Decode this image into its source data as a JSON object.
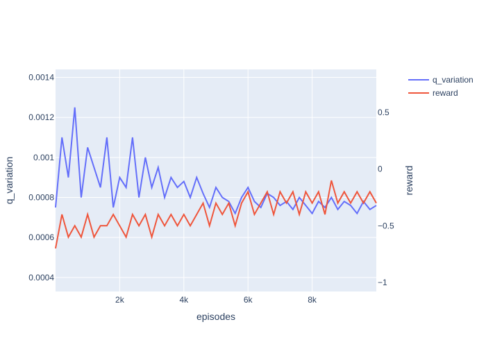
{
  "chart_data": {
    "type": "line",
    "xlabel": "episodes",
    "ylabel_left": "q_variation",
    "ylabel_right": "reward",
    "xlim": [
      0,
      10000
    ],
    "ylim_left": [
      0.00033,
      0.00144
    ],
    "ylim_right": [
      -1.08,
      0.88
    ],
    "x_ticks": [
      2000,
      4000,
      6000,
      8000
    ],
    "x_tick_labels": [
      "2k",
      "4k",
      "6k",
      "8k"
    ],
    "y_left_ticks": [
      0.0004,
      0.0006,
      0.0008,
      0.001,
      0.0012,
      0.0014
    ],
    "y_left_tick_labels": [
      "0.0004",
      "0.0006",
      "0.0008",
      "0.001",
      "0.0012",
      "0.0014"
    ],
    "y_right_ticks": [
      -1,
      -0.5,
      0,
      0.5
    ],
    "y_right_tick_labels": [
      "−1",
      "−0.5",
      "0",
      "0.5"
    ],
    "grid": true,
    "legend_position": "top-right",
    "series": [
      {
        "name": "q_variation",
        "axis": "left",
        "color": "#636efa",
        "x": [
          0,
          200,
          400,
          600,
          800,
          1000,
          1200,
          1400,
          1600,
          1800,
          2000,
          2200,
          2400,
          2600,
          2800,
          3000,
          3200,
          3400,
          3600,
          3800,
          4000,
          4200,
          4400,
          4600,
          4800,
          5000,
          5200,
          5400,
          5600,
          5800,
          6000,
          6200,
          6400,
          6600,
          6800,
          7000,
          7200,
          7400,
          7600,
          7800,
          8000,
          8200,
          8400,
          8600,
          8800,
          9000,
          9200,
          9400,
          9600,
          9800,
          10000
        ],
        "values": [
          0.00075,
          0.0011,
          0.0009,
          0.00125,
          0.0008,
          0.00105,
          0.00095,
          0.00085,
          0.0011,
          0.00075,
          0.0009,
          0.00085,
          0.0011,
          0.0008,
          0.001,
          0.00085,
          0.00095,
          0.0008,
          0.0009,
          0.00085,
          0.00088,
          0.0008,
          0.0009,
          0.00082,
          0.00075,
          0.00085,
          0.0008,
          0.00078,
          0.00072,
          0.0008,
          0.00085,
          0.00078,
          0.00075,
          0.00082,
          0.0008,
          0.00076,
          0.00078,
          0.00074,
          0.0008,
          0.00076,
          0.00072,
          0.00078,
          0.00075,
          0.0008,
          0.00074,
          0.00078,
          0.00076,
          0.00072,
          0.00078,
          0.00074,
          0.00076
        ]
      },
      {
        "name": "reward",
        "axis": "right",
        "color": "#ef553b",
        "x": [
          0,
          200,
          400,
          600,
          800,
          1000,
          1200,
          1400,
          1600,
          1800,
          2000,
          2200,
          2400,
          2600,
          2800,
          3000,
          3200,
          3400,
          3600,
          3800,
          4000,
          4200,
          4400,
          4600,
          4800,
          5000,
          5200,
          5400,
          5600,
          5800,
          6000,
          6200,
          6400,
          6600,
          6800,
          7000,
          7200,
          7400,
          7600,
          7800,
          8000,
          8200,
          8400,
          8600,
          8800,
          9000,
          9200,
          9400,
          9600,
          9800,
          10000
        ],
        "values": [
          -0.7,
          -0.4,
          -0.6,
          -0.5,
          -0.6,
          -0.4,
          -0.6,
          -0.5,
          -0.5,
          -0.4,
          -0.5,
          -0.6,
          -0.4,
          -0.5,
          -0.4,
          -0.6,
          -0.4,
          -0.5,
          -0.4,
          -0.5,
          -0.4,
          -0.5,
          -0.4,
          -0.3,
          -0.5,
          -0.3,
          -0.4,
          -0.3,
          -0.5,
          -0.3,
          -0.2,
          -0.4,
          -0.3,
          -0.2,
          -0.4,
          -0.2,
          -0.3,
          -0.2,
          -0.4,
          -0.2,
          -0.3,
          -0.2,
          -0.4,
          -0.1,
          -0.3,
          -0.2,
          -0.3,
          -0.2,
          -0.3,
          -0.2,
          -0.3
        ]
      }
    ]
  }
}
